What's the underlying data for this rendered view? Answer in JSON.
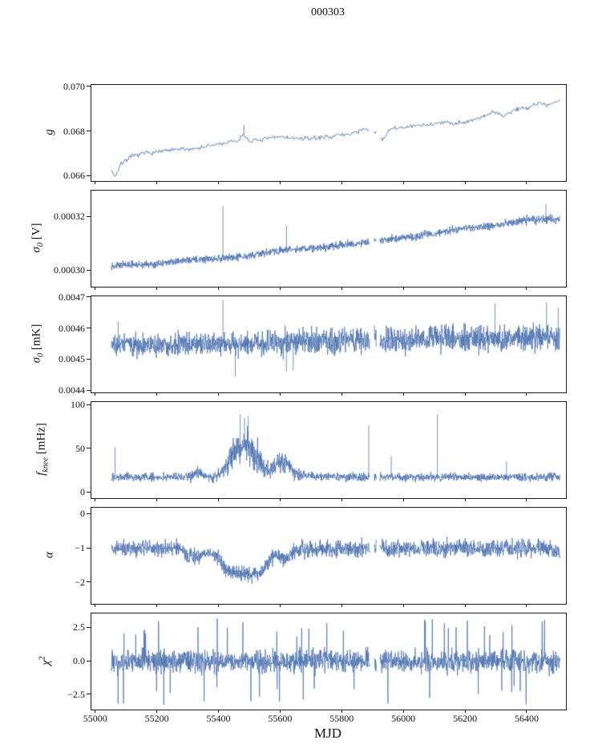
{
  "chart_data": {
    "type": "line",
    "title": "000303",
    "xlabel": "MJD",
    "line_color": "#4c72b0",
    "axis_color": "#1a1a1a",
    "xlim": [
      54985,
      56525
    ],
    "x_start": 55050,
    "x_end": 56505,
    "xticks": [
      [
        55000,
        "55000"
      ],
      [
        55200,
        "55200"
      ],
      [
        55400,
        "55400"
      ],
      [
        55600,
        "55600"
      ],
      [
        55800,
        "55800"
      ],
      [
        56000,
        "56000"
      ],
      [
        56200,
        "56200"
      ],
      [
        56400,
        "56400"
      ]
    ],
    "gaps": [
      [
        55888,
        55903
      ],
      [
        55910,
        55921
      ]
    ],
    "panels": [
      {
        "name": "gain",
        "label": {
          "var": "g",
          "unit": ""
        },
        "ylim": [
          0.0658,
          0.0701
        ],
        "yticks": [
          [
            0.066,
            "0.066"
          ],
          [
            0.068,
            "0.068"
          ],
          [
            0.07,
            "0.070"
          ]
        ],
        "seed": 7,
        "lw": 0.9,
        "spp": 0.9,
        "tail": 0,
        "trend": [
          [
            55050,
            0.0663
          ],
          [
            55062,
            0.066
          ],
          [
            55075,
            0.0664
          ],
          [
            55090,
            0.0667
          ],
          [
            55120,
            0.0669
          ],
          [
            55160,
            0.06705
          ],
          [
            55200,
            0.0671
          ],
          [
            55260,
            0.0672
          ],
          [
            55320,
            0.06725
          ],
          [
            55380,
            0.0674
          ],
          [
            55420,
            0.0675
          ],
          [
            55460,
            0.0676
          ],
          [
            55480,
            0.0679
          ],
          [
            55495,
            0.0676
          ],
          [
            55520,
            0.0676
          ],
          [
            55560,
            0.0677
          ],
          [
            55600,
            0.0678
          ],
          [
            55640,
            0.0677
          ],
          [
            55700,
            0.0677
          ],
          [
            55760,
            0.0678
          ],
          [
            55820,
            0.0679
          ],
          [
            55870,
            0.0681
          ],
          [
            55905,
            0.068
          ],
          [
            55930,
            0.0676
          ],
          [
            55950,
            0.0681
          ],
          [
            56000,
            0.0682
          ],
          [
            56060,
            0.0683
          ],
          [
            56120,
            0.0684
          ],
          [
            56180,
            0.0684
          ],
          [
            56240,
            0.0686
          ],
          [
            56290,
            0.0689
          ],
          [
            56320,
            0.0687
          ],
          [
            56360,
            0.069
          ],
          [
            56400,
            0.0691
          ],
          [
            56440,
            0.0693
          ],
          [
            56470,
            0.0692
          ],
          [
            56505,
            0.0694
          ]
        ],
        "noise": [
          [
            55050,
            0.00016
          ],
          [
            55200,
            0.00012
          ],
          [
            56200,
            0.00012
          ],
          [
            56350,
            0.00014
          ],
          [
            56505,
            0.00013
          ]
        ],
        "spikes": [
          [
            55480,
            0.0683
          ]
        ]
      },
      {
        "name": "sigma0-volts",
        "label": {
          "var": "σ",
          "sub": "0",
          "unit": " [V]"
        },
        "ylim": [
          0.000294,
          0.00033
        ],
        "yticks": [
          [
            0.0003,
            "0.00030"
          ],
          [
            0.00032,
            "0.00032"
          ]
        ],
        "seed": 13,
        "lw": 0.8,
        "spp": 3,
        "tail": 0,
        "trend": [
          [
            55050,
            0.000302
          ],
          [
            55200,
            0.0003025
          ],
          [
            55300,
            0.000304
          ],
          [
            55450,
            0.000305
          ],
          [
            55600,
            0.0003075
          ],
          [
            55750,
            0.000309
          ],
          [
            55900,
            0.000311
          ],
          [
            56050,
            0.000313
          ],
          [
            56200,
            0.000316
          ],
          [
            56300,
            0.000317
          ],
          [
            56400,
            0.000319
          ],
          [
            56505,
            0.0003195
          ]
        ],
        "noise": [
          [
            55050,
            1.6e-06
          ],
          [
            56505,
            2e-06
          ]
        ],
        "spikes": [
          [
            55412,
            0.0003242
          ],
          [
            55618,
            0.000317
          ],
          [
            56460,
            0.000325
          ]
        ]
      },
      {
        "name": "sigma0-mk",
        "label": {
          "var": "σ",
          "sub": "0",
          "unit": " [mK]"
        },
        "ylim": [
          0.004395,
          0.004705
        ],
        "yticks": [
          [
            0.0044,
            "0.0044"
          ],
          [
            0.0045,
            "0.0045"
          ],
          [
            0.0046,
            "0.0046"
          ],
          [
            0.0047,
            "0.0047"
          ]
        ],
        "seed": 21,
        "lw": 0.8,
        "spp": 3,
        "tail": 0,
        "trend": [
          [
            55050,
            0.004552
          ],
          [
            55250,
            0.004546
          ],
          [
            55450,
            0.004552
          ],
          [
            55650,
            0.004558
          ],
          [
            55900,
            0.004563
          ],
          [
            56150,
            0.004572
          ],
          [
            56505,
            0.004573
          ]
        ],
        "noise": [
          [
            55050,
            4.3e-05
          ],
          [
            55350,
            4.7e-05
          ],
          [
            55600,
            5e-05
          ],
          [
            56505,
            5.2e-05
          ]
        ],
        "spikes": [
          [
            55072,
            0.004625
          ],
          [
            55412,
            0.004692
          ],
          [
            55452,
            0.004446
          ],
          [
            55618,
            0.004462
          ],
          [
            55640,
            0.004465
          ],
          [
            56295,
            0.004682
          ],
          [
            56462,
            0.004686
          ],
          [
            56500,
            0.004668
          ]
        ]
      },
      {
        "name": "fknee",
        "label": {
          "var": "f",
          "sub": "knee",
          "unit": " [mHz]"
        },
        "ylim": [
          -6,
          104
        ],
        "yticks": [
          [
            0,
            "0"
          ],
          [
            50,
            "50"
          ],
          [
            100,
            "100"
          ]
        ],
        "seed": 29,
        "lw": 0.8,
        "spp": 3,
        "tail": 0,
        "floor": 4,
        "trend": [
          [
            55050,
            18
          ],
          [
            55290,
            18
          ],
          [
            55310,
            19
          ],
          [
            55330,
            24
          ],
          [
            55350,
            19
          ],
          [
            55380,
            18
          ],
          [
            55400,
            22
          ],
          [
            55420,
            30
          ],
          [
            55440,
            42
          ],
          [
            55460,
            50
          ],
          [
            55475,
            52
          ],
          [
            55500,
            50
          ],
          [
            55520,
            42
          ],
          [
            55545,
            30
          ],
          [
            55560,
            26
          ],
          [
            55580,
            30
          ],
          [
            55605,
            36
          ],
          [
            55620,
            34
          ],
          [
            55640,
            24
          ],
          [
            55660,
            20
          ],
          [
            55700,
            19
          ],
          [
            55900,
            18
          ],
          [
            56505,
            18
          ]
        ],
        "noise": [
          [
            55050,
            6
          ],
          [
            55290,
            6
          ],
          [
            55320,
            9
          ],
          [
            55350,
            6
          ],
          [
            55380,
            7
          ],
          [
            55410,
            10
          ],
          [
            55440,
            20
          ],
          [
            55460,
            27
          ],
          [
            55500,
            27
          ],
          [
            55530,
            20
          ],
          [
            55560,
            13
          ],
          [
            55590,
            15
          ],
          [
            55620,
            15
          ],
          [
            55650,
            8
          ],
          [
            55700,
            6
          ],
          [
            56505,
            6
          ]
        ],
        "spikes": [
          [
            55062,
            52
          ],
          [
            55468,
            90
          ],
          [
            55482,
            86
          ],
          [
            55494,
            88
          ],
          [
            55885,
            77
          ],
          [
            55958,
            42
          ],
          [
            56108,
            90
          ],
          [
            56332,
            36
          ]
        ]
      },
      {
        "name": "alpha",
        "label": {
          "var": "α",
          "unit": ""
        },
        "ylim": [
          -2.61,
          0.19
        ],
        "yticks": [
          [
            0,
            "0"
          ],
          [
            -1,
            "−1"
          ],
          [
            -2,
            "−2"
          ]
        ],
        "seed": 41,
        "lw": 0.8,
        "spp": 3,
        "tail": 0,
        "trend": [
          [
            55050,
            -1
          ],
          [
            55270,
            -1
          ],
          [
            55300,
            -1.2
          ],
          [
            55330,
            -1.28
          ],
          [
            55360,
            -1.1
          ],
          [
            55390,
            -1.2
          ],
          [
            55420,
            -1.55
          ],
          [
            55445,
            -1.72
          ],
          [
            55530,
            -1.75
          ],
          [
            55555,
            -1.45
          ],
          [
            55575,
            -1.15
          ],
          [
            55600,
            -1.3
          ],
          [
            55625,
            -1.2
          ],
          [
            55650,
            -1.05
          ],
          [
            55700,
            -1
          ],
          [
            56505,
            -1
          ]
        ],
        "noise": [
          [
            55050,
            0.3
          ],
          [
            55400,
            0.28
          ],
          [
            55600,
            0.33
          ],
          [
            55800,
            0.3
          ],
          [
            56505,
            0.3
          ]
        ],
        "spikes": []
      },
      {
        "name": "chi2",
        "label": {
          "var": "χ",
          "sup": "2",
          "unit": ""
        },
        "ylim": [
          -3.6,
          3.6
        ],
        "yticks": [
          [
            2.5,
            "2.5"
          ],
          [
            0,
            "0.0"
          ],
          [
            -2.5,
            "−2.5"
          ]
        ],
        "seed": 53,
        "lw": 0.8,
        "spp": 3,
        "tail": 2.6,
        "trend": [
          [
            55050,
            0
          ],
          [
            56505,
            0
          ]
        ],
        "noise": [
          [
            55050,
            1.05
          ],
          [
            56505,
            1.05
          ]
        ],
        "spikes": []
      }
    ]
  }
}
